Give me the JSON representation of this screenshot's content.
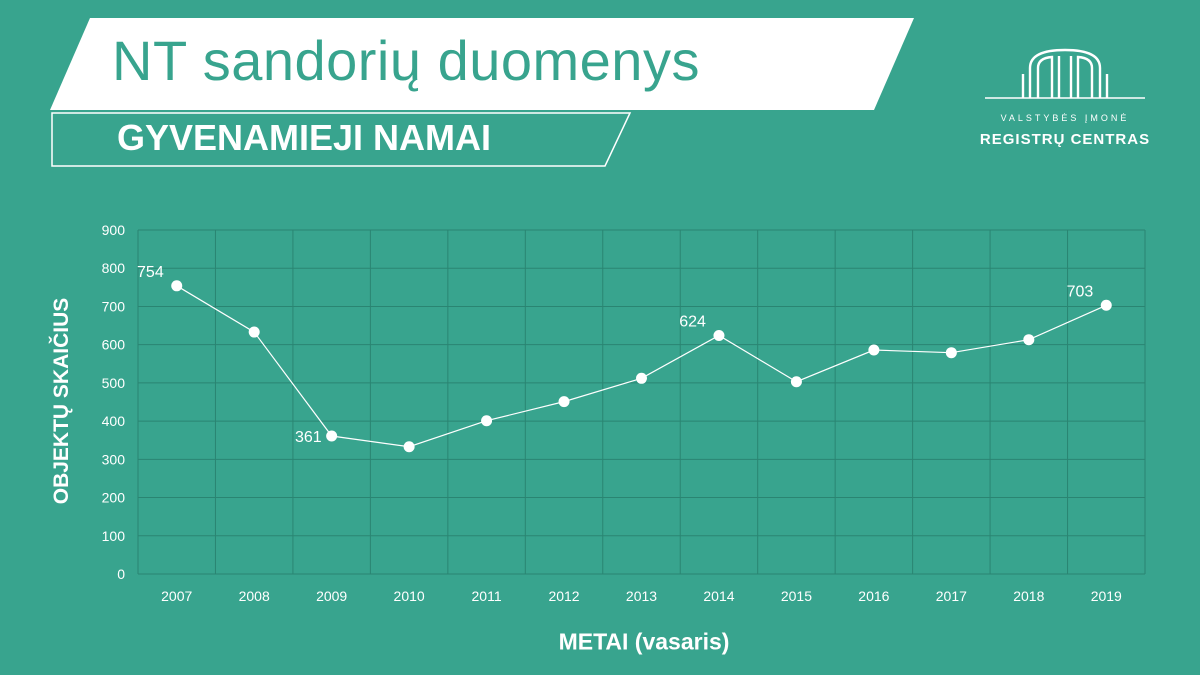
{
  "header": {
    "title": "NT sandorių duomenys",
    "subtitle": "GYVENAMIEJI NAMAI"
  },
  "logo": {
    "line1": "VALSTYBĖS ĮMONĖ",
    "line2": "REGISTRŲ CENTRAS"
  },
  "colors": {
    "background": "#38a48e",
    "grid": "#2a8572",
    "line": "#ffffff",
    "text": "#ffffff"
  },
  "chart_data": {
    "type": "line",
    "x": [
      "2007",
      "2008",
      "2009",
      "2010",
      "2011",
      "2012",
      "2013",
      "2014",
      "2015",
      "2016",
      "2017",
      "2018",
      "2019"
    ],
    "series": [
      {
        "values": [
          754,
          633,
          361,
          333,
          401,
          451,
          512,
          624,
          503,
          586,
          579,
          613,
          703
        ],
        "labels": [
          "754",
          "",
          "361",
          "",
          "",
          "",
          "",
          "624",
          "",
          "",
          "",
          "",
          "703"
        ]
      }
    ],
    "xlabel": "METAI (vasaris)",
    "ylabel": "OBJEKTŲ SKAIČIUS",
    "ylim": [
      0,
      900
    ],
    "yticks": [
      "0",
      "100",
      "200",
      "300",
      "400",
      "500",
      "600",
      "700",
      "800",
      "900"
    ],
    "grid": true
  }
}
